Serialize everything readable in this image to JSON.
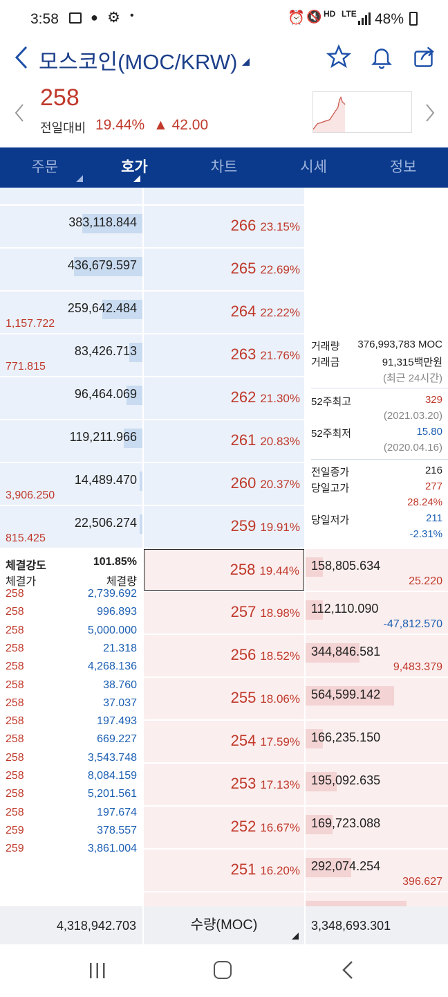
{
  "status": {
    "time": "3:58",
    "battery": "48%",
    "hd": "HD",
    "lte": "LTE"
  },
  "header": {
    "title": "모스코인(MOC/KRW)"
  },
  "price": {
    "current": "258",
    "label": "전일대비",
    "pct": "19.44%",
    "change": "▲ 42.00"
  },
  "tabs": [
    {
      "label": "주문",
      "active": false,
      "tri": true
    },
    {
      "label": "호가",
      "active": true,
      "tri": true
    },
    {
      "label": "차트",
      "active": false,
      "tri": false
    },
    {
      "label": "시세",
      "active": false,
      "tri": false
    },
    {
      "label": "정보",
      "active": false,
      "tri": false
    }
  ],
  "asks": [
    {
      "price": "266",
      "pct": "23.15%",
      "vol": "383,118.844",
      "bar": 0.42,
      "chg": ""
    },
    {
      "price": "265",
      "pct": "22.69%",
      "vol": "436,679.597",
      "bar": 0.48,
      "chg": ""
    },
    {
      "price": "264",
      "pct": "22.22%",
      "vol": "259,642.484",
      "bar": 0.28,
      "chg": "1,157.722"
    },
    {
      "price": "263",
      "pct": "21.76%",
      "vol": "83,426.713",
      "bar": 0.09,
      "chg": "771.815"
    },
    {
      "price": "262",
      "pct": "21.30%",
      "vol": "96,464.069",
      "bar": 0.11,
      "chg": ""
    },
    {
      "price": "261",
      "pct": "20.83%",
      "vol": "119,211.966",
      "bar": 0.13,
      "chg": ""
    },
    {
      "price": "260",
      "pct": "20.37%",
      "vol": "14,489.470",
      "bar": 0.02,
      "chg": "3,906.250"
    },
    {
      "price": "259",
      "pct": "19.91%",
      "vol": "22,506.274",
      "bar": 0.02,
      "chg": "815.425"
    }
  ],
  "bids": [
    {
      "price": "258",
      "pct": "19.44%",
      "vol": "158,805.634",
      "bar": 0.12,
      "chg": "25.220",
      "chgColor": "red"
    },
    {
      "price": "257",
      "pct": "18.98%",
      "vol": "112,110.090",
      "bar": 0.12,
      "chg": "-47,812.570",
      "chgColor": "blue"
    },
    {
      "price": "256",
      "pct": "18.52%",
      "vol": "344,846.581",
      "bar": 0.38,
      "chg": "9,483.379",
      "chgColor": "red"
    },
    {
      "price": "255",
      "pct": "18.06%",
      "vol": "564,599.142",
      "bar": 0.62,
      "chg": "",
      "chgColor": "red"
    },
    {
      "price": "254",
      "pct": "17.59%",
      "vol": "166,235.150",
      "bar": 0.12,
      "chg": "",
      "chgColor": "red"
    },
    {
      "price": "253",
      "pct": "17.13%",
      "vol": "195,092.635",
      "bar": 0.22,
      "chg": "",
      "chgColor": "red"
    },
    {
      "price": "252",
      "pct": "16.67%",
      "vol": "169,723.088",
      "bar": 0.19,
      "chg": "",
      "chgColor": "red"
    },
    {
      "price": "251",
      "pct": "16.20%",
      "vol": "292,074.254",
      "bar": 0.32,
      "chg": "396.627",
      "chgColor": "red"
    }
  ],
  "info": {
    "volume_label": "거래량",
    "volume": "376,993,783 MOC",
    "amount_label": "거래금",
    "amount": "91,315백만원",
    "period": "(최근 24시간)",
    "high52_label": "52주최고",
    "high52": "329",
    "high52_date": "(2021.03.20)",
    "low52_label": "52주최저",
    "low52": "15.80",
    "low52_date": "(2020.04.16)",
    "prevclose_label": "전일종가",
    "prevclose": "216",
    "dayhigh_label": "당일고가",
    "dayhigh": "277",
    "dayhigh_pct": "28.24%",
    "daylow_label": "당일저가",
    "daylow": "211",
    "daylow_pct": "-2.31%"
  },
  "trades": {
    "strength_label": "체결강도",
    "strength": "101.85%",
    "price_header": "체결가",
    "vol_header": "체결량",
    "rows": [
      {
        "p": "258",
        "v": "2,739.692"
      },
      {
        "p": "258",
        "v": "996.893"
      },
      {
        "p": "258",
        "v": "5,000.000"
      },
      {
        "p": "258",
        "v": "21.318"
      },
      {
        "p": "258",
        "v": "4,268.136"
      },
      {
        "p": "258",
        "v": "38.760"
      },
      {
        "p": "258",
        "v": "37.037"
      },
      {
        "p": "258",
        "v": "197.493"
      },
      {
        "p": "258",
        "v": "669.227"
      },
      {
        "p": "258",
        "v": "3,543.748"
      },
      {
        "p": "258",
        "v": "8,084.159"
      },
      {
        "p": "258",
        "v": "5,201.561"
      },
      {
        "p": "258",
        "v": "197.674"
      },
      {
        "p": "259",
        "v": "378.557"
      },
      {
        "p": "259",
        "v": "3,861.004"
      }
    ]
  },
  "footer": {
    "ask_total": "4,318,942.703",
    "unit": "수량(MOC)",
    "bid_total": "3,348,693.301"
  },
  "colors": {
    "up": "#c0392b",
    "down": "#1c5fb3",
    "nav": "#0b3a8c"
  }
}
